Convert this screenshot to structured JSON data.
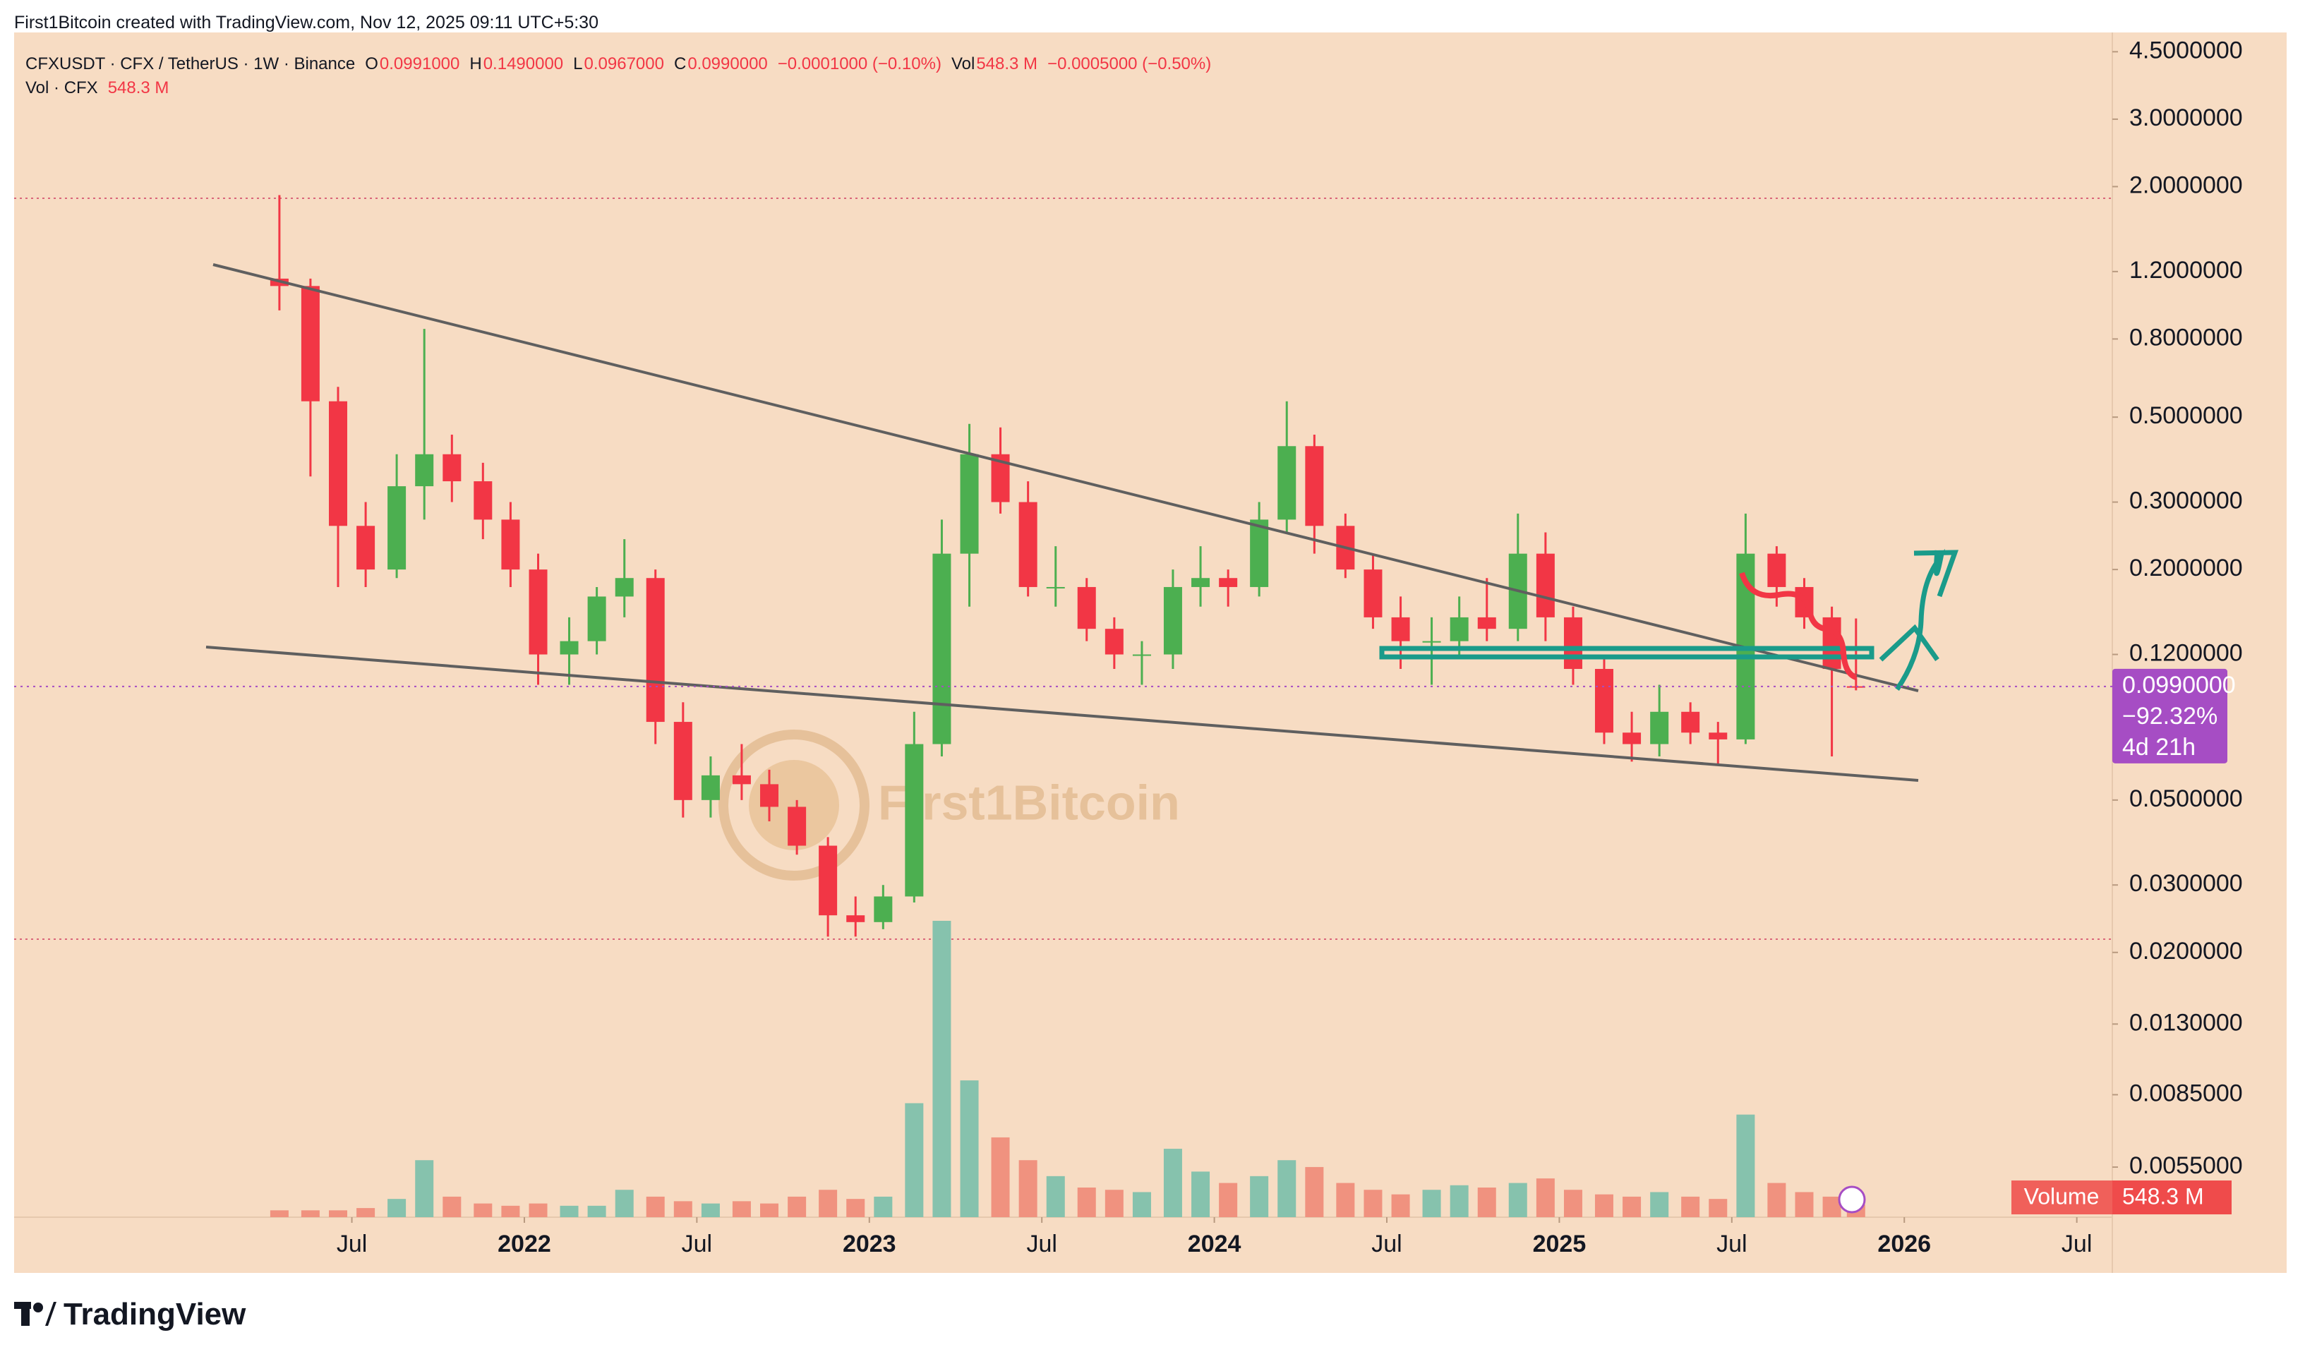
{
  "header": {
    "attribution": "First1Bitcoin created with TradingView.com, Nov 12, 2025 09:11 UTC+5:30"
  },
  "legend": {
    "symbol": "CFXUSDT · CFX / TetherUS · 1W · Binance",
    "o_label": "O",
    "open": "0.0991000",
    "h_label": "H",
    "high": "0.1490000",
    "l_label": "L",
    "low": "0.0967000",
    "c_label": "C",
    "close": "0.0990000",
    "change": "−0.0001000 (−0.10%)",
    "vol_label": "Vol",
    "volume": "548.3 M",
    "vol_change": "−0.0005000 (−0.50%)",
    "vol_series": "Vol · CFX",
    "vol_series_value": "548.3 M"
  },
  "chart_data": {
    "type": "candlestick",
    "log_y": true,
    "x": [
      2021.29,
      2021.38,
      2021.46,
      2021.54,
      2021.63,
      2021.71,
      2021.79,
      2021.88,
      2021.96,
      2022.04,
      2022.13,
      2022.21,
      2022.29,
      2022.38,
      2022.46,
      2022.54,
      2022.63,
      2022.71,
      2022.79,
      2022.88,
      2022.96,
      2023.04,
      2023.13,
      2023.21,
      2023.29,
      2023.38,
      2023.46,
      2023.54,
      2023.63,
      2023.71,
      2023.79,
      2023.88,
      2023.96,
      2024.04,
      2024.13,
      2024.21,
      2024.29,
      2024.38,
      2024.46,
      2024.54,
      2024.63,
      2024.71,
      2024.79,
      2024.88,
      2024.96,
      2025.04,
      2025.13,
      2025.21,
      2025.29,
      2025.38,
      2025.46,
      2025.54,
      2025.63,
      2025.71,
      2025.79,
      2025.86
    ],
    "open": [
      1.15,
      1.1,
      0.55,
      0.26,
      0.2,
      0.33,
      0.4,
      0.34,
      0.27,
      0.2,
      0.12,
      0.13,
      0.17,
      0.19,
      0.08,
      0.05,
      0.058,
      0.055,
      0.048,
      0.038,
      0.025,
      0.024,
      0.028,
      0.07,
      0.22,
      0.4,
      0.3,
      0.18,
      0.18,
      0.14,
      0.12,
      0.12,
      0.18,
      0.19,
      0.18,
      0.27,
      0.42,
      0.26,
      0.2,
      0.15,
      0.13,
      0.13,
      0.15,
      0.14,
      0.22,
      0.15,
      0.11,
      0.075,
      0.07,
      0.085,
      0.075,
      0.072,
      0.22,
      0.18,
      0.15,
      0.0991
    ],
    "high": [
      1.9,
      1.15,
      0.6,
      0.3,
      0.4,
      0.85,
      0.45,
      0.38,
      0.3,
      0.22,
      0.15,
      0.18,
      0.24,
      0.2,
      0.09,
      0.065,
      0.07,
      0.06,
      0.05,
      0.04,
      0.028,
      0.03,
      0.085,
      0.27,
      0.48,
      0.47,
      0.34,
      0.23,
      0.19,
      0.15,
      0.13,
      0.2,
      0.23,
      0.2,
      0.3,
      0.55,
      0.45,
      0.28,
      0.22,
      0.17,
      0.15,
      0.17,
      0.19,
      0.28,
      0.25,
      0.16,
      0.12,
      0.085,
      0.1,
      0.09,
      0.08,
      0.28,
      0.23,
      0.19,
      0.16,
      0.149
    ],
    "low": [
      0.95,
      0.35,
      0.18,
      0.18,
      0.19,
      0.27,
      0.3,
      0.24,
      0.18,
      0.1,
      0.1,
      0.12,
      0.15,
      0.07,
      0.045,
      0.045,
      0.05,
      0.044,
      0.036,
      0.022,
      0.022,
      0.023,
      0.027,
      0.065,
      0.16,
      0.28,
      0.17,
      0.16,
      0.13,
      0.11,
      0.1,
      0.11,
      0.16,
      0.16,
      0.17,
      0.25,
      0.22,
      0.19,
      0.14,
      0.11,
      0.1,
      0.12,
      0.13,
      0.13,
      0.13,
      0.1,
      0.07,
      0.063,
      0.065,
      0.07,
      0.062,
      0.07,
      0.16,
      0.14,
      0.065,
      0.0967
    ],
    "close": [
      1.1,
      0.55,
      0.26,
      0.2,
      0.33,
      0.4,
      0.34,
      0.27,
      0.2,
      0.12,
      0.13,
      0.17,
      0.19,
      0.08,
      0.05,
      0.058,
      0.055,
      0.048,
      0.038,
      0.025,
      0.024,
      0.028,
      0.07,
      0.22,
      0.4,
      0.3,
      0.18,
      0.18,
      0.14,
      0.12,
      0.12,
      0.18,
      0.19,
      0.18,
      0.27,
      0.42,
      0.26,
      0.2,
      0.15,
      0.13,
      0.13,
      0.15,
      0.14,
      0.22,
      0.15,
      0.11,
      0.075,
      0.07,
      0.085,
      0.075,
      0.072,
      0.22,
      0.18,
      0.15,
      0.11,
      0.099
    ],
    "volume": [
      300,
      300,
      300,
      400,
      800,
      2500,
      900,
      600,
      500,
      600,
      500,
      500,
      1200,
      900,
      700,
      600,
      700,
      600,
      900,
      1200,
      800,
      900,
      5000,
      13000,
      6000,
      3500,
      2500,
      1800,
      1300,
      1200,
      1100,
      3000,
      2000,
      1500,
      1800,
      2500,
      2200,
      1500,
      1200,
      1000,
      1200,
      1400,
      1300,
      1500,
      1700,
      1200,
      1000,
      900,
      1100,
      900,
      800,
      4500,
      1500,
      1100,
      900,
      548.3
    ],
    "up_color": "#4caf50",
    "down_color": "#f23645",
    "volume_up_color": "#86c2ad",
    "volume_down_color": "#f0927f",
    "xlim": [
      2020.521,
      2026.603
    ],
    "xticks": [
      {
        "value": 2021.5,
        "label": "Jul"
      },
      2022,
      {
        "value": 2022.5,
        "label": "Jul"
      },
      2023,
      {
        "value": 2023.5,
        "label": "Jul"
      },
      2024,
      {
        "value": 2024.5,
        "label": "Jul"
      },
      2025,
      {
        "value": 2025.5,
        "label": "Jul"
      },
      2026,
      {
        "value": 2026.5,
        "label": "Jul"
      }
    ],
    "ylim": [
      0.00407,
      5.14
    ],
    "yticks": [
      {
        "value": 4.5,
        "label": "4.5000000"
      },
      {
        "value": 3,
        "label": "3.0000000"
      },
      {
        "value": 2,
        "label": "2.0000000"
      },
      {
        "value": 1.2,
        "label": "1.2000000"
      },
      {
        "value": 0.8,
        "label": "0.8000000"
      },
      {
        "value": 0.5,
        "label": "0.5000000"
      },
      {
        "value": 0.3,
        "label": "0.3000000"
      },
      {
        "value": 0.2,
        "label": "0.2000000"
      },
      {
        "value": 0.12,
        "label": "0.1200000"
      },
      {
        "value": 0.05,
        "label": "0.0500000"
      },
      {
        "value": 0.03,
        "label": "0.0300000"
      },
      {
        "value": 0.02,
        "label": "0.0200000"
      },
      {
        "value": 0.013,
        "label": "0.0130000"
      },
      {
        "value": 0.0085,
        "label": "0.0085000"
      },
      {
        "value": 0.0055,
        "label": "0.0055000"
      }
    ],
    "price_label": {
      "value": "0.0990000",
      "change": "−92.32%",
      "countdown": "4d 21h",
      "color": "#a64dc4"
    },
    "volume_label": {
      "name": "Volume",
      "value": "548.3 M"
    },
    "watermark": "First1Bitcoin"
  },
  "footer": {
    "brand": "TradingView"
  }
}
